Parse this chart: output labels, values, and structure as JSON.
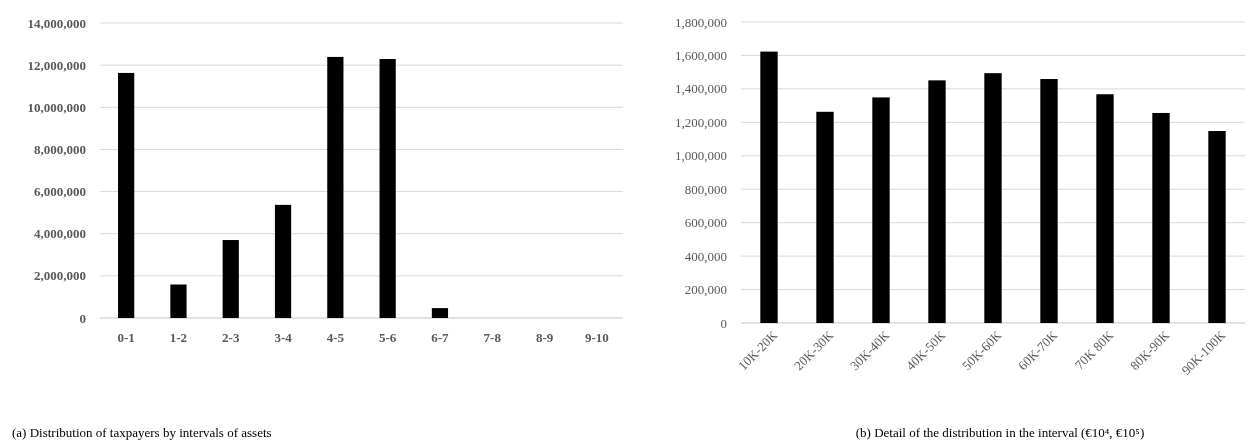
{
  "chart_data": [
    {
      "type": "bar",
      "title": "(a) Distribution of taxpayers by intervals of assets",
      "categories": [
        "0-1",
        "1-2",
        "2-3",
        "3-4",
        "4-5",
        "5-6",
        "6-7",
        "7-8",
        "8-9",
        "9-10"
      ],
      "values": [
        11630000,
        1590000,
        3700000,
        5370000,
        12390000,
        12290000,
        470000,
        0,
        0,
        0
      ],
      "color": "#000000",
      "ylim": [
        0,
        14000000
      ],
      "yticks": [
        {
          "value": 0,
          "label": "0"
        },
        {
          "value": 2000000,
          "label": "2,000,000"
        },
        {
          "value": 4000000,
          "label": "4,000,000"
        },
        {
          "value": 6000000,
          "label": "6,000,000"
        },
        {
          "value": 8000000,
          "label": "8,000,000"
        },
        {
          "value": 10000000,
          "label": "10,000,000"
        },
        {
          "value": 12000000,
          "label": "12,000,000"
        },
        {
          "value": 14000000,
          "label": "14,000,000"
        }
      ],
      "grid": "y"
    },
    {
      "type": "bar",
      "title": "(b) Detail of the distribution in the interval (€10⁴, €10⁵)",
      "categories": [
        "10K-20K",
        "20K-30K",
        "30K-40K",
        "40K-50K",
        "50K-60K",
        "60K-70K",
        "70K 80K",
        "80K-90K",
        "90K-100K"
      ],
      "values": [
        1623000,
        1263000,
        1349000,
        1451000,
        1494000,
        1459000,
        1368000,
        1256000,
        1148000
      ],
      "color": "#000000",
      "ylim": [
        0,
        1800000
      ],
      "yticks": [
        {
          "value": 0,
          "label": "0"
        },
        {
          "value": 200000,
          "label": "200,000"
        },
        {
          "value": 400000,
          "label": "400,000"
        },
        {
          "value": 600000,
          "label": "600,000"
        },
        {
          "value": 800000,
          "label": "800,000"
        },
        {
          "value": 1000000,
          "label": "1,000,000"
        },
        {
          "value": 1200000,
          "label": "1,200,000"
        },
        {
          "value": 1400000,
          "label": "1,400,000"
        },
        {
          "value": 1600000,
          "label": "1,600,000"
        },
        {
          "value": 1800000,
          "label": "1,800,000"
        }
      ],
      "grid": "y"
    }
  ]
}
